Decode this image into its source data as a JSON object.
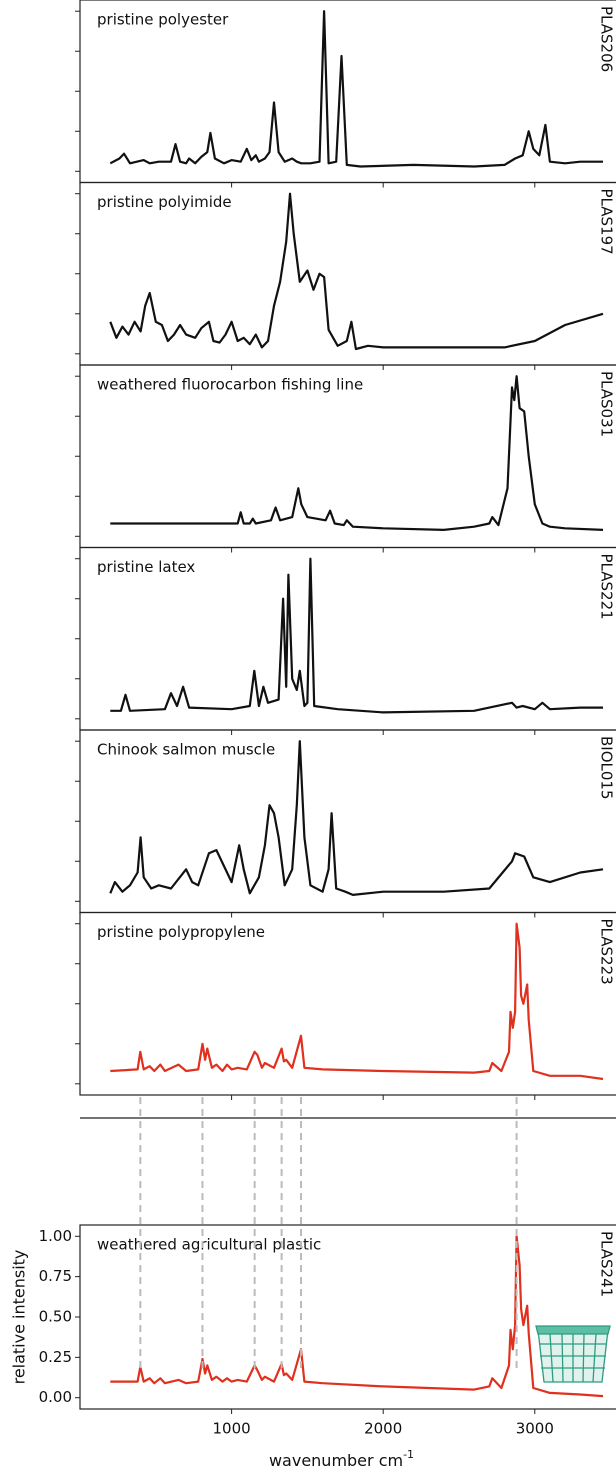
{
  "chart_data": [
    {
      "type": "line",
      "title": "pristine polyester",
      "side_label": "PLAS206",
      "color": "#111111",
      "x": [
        200,
        260,
        290,
        330,
        420,
        460,
        520,
        600,
        630,
        660,
        700,
        720,
        760,
        800,
        840,
        860,
        890,
        950,
        1000,
        1060,
        1100,
        1130,
        1160,
        1180,
        1220,
        1250,
        1280,
        1310,
        1350,
        1400,
        1430,
        1460,
        1520,
        1580,
        1610,
        1640,
        1690,
        1725,
        1760,
        1850,
        2200,
        2600,
        2800,
        2870,
        2920,
        2960,
        2990,
        3030,
        3070,
        3100,
        3200,
        3300,
        3450
      ],
      "values": [
        0.05,
        0.08,
        0.11,
        0.05,
        0.07,
        0.05,
        0.06,
        0.06,
        0.17,
        0.06,
        0.05,
        0.08,
        0.05,
        0.09,
        0.12,
        0.24,
        0.08,
        0.05,
        0.07,
        0.06,
        0.14,
        0.07,
        0.1,
        0.06,
        0.08,
        0.12,
        0.43,
        0.12,
        0.06,
        0.08,
        0.06,
        0.05,
        0.05,
        0.06,
        1.0,
        0.05,
        0.06,
        0.72,
        0.04,
        0.03,
        0.04,
        0.03,
        0.04,
        0.08,
        0.1,
        0.25,
        0.14,
        0.1,
        0.29,
        0.06,
        0.05,
        0.06,
        0.06
      ],
      "xlim": [
        0,
        3450
      ],
      "ylim": [
        -0.07,
        1.07
      ],
      "xticks": [
        1000,
        2000,
        3000
      ],
      "yticks": [
        0,
        0.25,
        0.5,
        0.75,
        1
      ]
    },
    {
      "type": "line",
      "title": "pristine polyimide",
      "side_label": "PLAS197",
      "color": "#111111",
      "x": [
        200,
        240,
        280,
        320,
        360,
        400,
        430,
        460,
        500,
        540,
        580,
        620,
        660,
        700,
        760,
        800,
        850,
        880,
        920,
        960,
        1000,
        1040,
        1080,
        1120,
        1160,
        1200,
        1240,
        1280,
        1320,
        1360,
        1385,
        1410,
        1450,
        1500,
        1540,
        1580,
        1610,
        1640,
        1700,
        1760,
        1790,
        1820,
        1900,
        2000,
        2200,
        2500,
        2800,
        3000,
        3200,
        3450
      ],
      "values": [
        0.2,
        0.1,
        0.17,
        0.12,
        0.2,
        0.14,
        0.3,
        0.38,
        0.2,
        0.18,
        0.08,
        0.12,
        0.18,
        0.12,
        0.1,
        0.16,
        0.2,
        0.08,
        0.07,
        0.12,
        0.2,
        0.08,
        0.1,
        0.06,
        0.12,
        0.04,
        0.08,
        0.3,
        0.45,
        0.7,
        1.0,
        0.75,
        0.45,
        0.52,
        0.4,
        0.5,
        0.48,
        0.15,
        0.05,
        0.08,
        0.2,
        0.03,
        0.05,
        0.04,
        0.04,
        0.04,
        0.04,
        0.08,
        0.18,
        0.25
      ],
      "xlim": [
        0,
        3450
      ],
      "ylim": [
        -0.07,
        1.07
      ],
      "xticks": [
        1000,
        2000,
        3000
      ],
      "yticks": [
        0,
        0.25,
        0.5,
        0.75,
        1
      ]
    },
    {
      "type": "line",
      "title": "weathered fluorocarbon fishing line",
      "side_label": "PLAS031",
      "color": "#111111",
      "x": [
        200,
        500,
        800,
        1000,
        1040,
        1060,
        1080,
        1120,
        1140,
        1160,
        1260,
        1290,
        1320,
        1400,
        1440,
        1460,
        1500,
        1620,
        1650,
        1680,
        1740,
        1760,
        1800,
        2000,
        2400,
        2600,
        2700,
        2720,
        2760,
        2820,
        2850,
        2865,
        2880,
        2900,
        2930,
        2960,
        3000,
        3050,
        3100,
        3200,
        3450
      ],
      "values": [
        0.08,
        0.08,
        0.08,
        0.08,
        0.08,
        0.15,
        0.08,
        0.08,
        0.11,
        0.08,
        0.1,
        0.18,
        0.1,
        0.12,
        0.3,
        0.2,
        0.12,
        0.1,
        0.16,
        0.08,
        0.07,
        0.1,
        0.06,
        0.05,
        0.04,
        0.06,
        0.08,
        0.12,
        0.07,
        0.3,
        0.93,
        0.85,
        1.0,
        0.8,
        0.78,
        0.5,
        0.2,
        0.08,
        0.06,
        0.05,
        0.04
      ],
      "xlim": [
        0,
        3450
      ],
      "ylim": [
        -0.07,
        1.07
      ],
      "xticks": [
        1000,
        2000,
        3000
      ],
      "yticks": [
        0,
        0.25,
        0.5,
        0.75,
        1
      ]
    },
    {
      "type": "line",
      "title": "pristine latex",
      "side_label": "PLAS221",
      "color": "#111111",
      "x": [
        200,
        270,
        300,
        330,
        560,
        600,
        640,
        680,
        720,
        1000,
        1120,
        1150,
        1180,
        1210,
        1240,
        1310,
        1340,
        1360,
        1375,
        1400,
        1430,
        1450,
        1480,
        1500,
        1520,
        1545,
        1700,
        2000,
        2600,
        2850,
        2880,
        2920,
        3000,
        3050,
        3100,
        3300,
        3450
      ],
      "values": [
        0.05,
        0.05,
        0.15,
        0.05,
        0.06,
        0.16,
        0.08,
        0.2,
        0.07,
        0.06,
        0.08,
        0.3,
        0.08,
        0.2,
        0.1,
        0.12,
        0.75,
        0.2,
        0.9,
        0.25,
        0.18,
        0.3,
        0.08,
        0.1,
        1.0,
        0.08,
        0.06,
        0.04,
        0.05,
        0.1,
        0.07,
        0.08,
        0.06,
        0.1,
        0.06,
        0.07,
        0.07
      ],
      "xlim": [
        0,
        3450
      ],
      "ylim": [
        -0.07,
        1.07
      ],
      "xticks": [
        1000,
        2000,
        3000
      ],
      "yticks": [
        0,
        0.25,
        0.5,
        0.75,
        1
      ]
    },
    {
      "type": "line",
      "title": "Chinook salmon muscle",
      "side_label": "BIOL015",
      "color": "#111111",
      "x": [
        200,
        230,
        280,
        330,
        380,
        400,
        420,
        470,
        520,
        600,
        700,
        740,
        780,
        850,
        900,
        950,
        1000,
        1050,
        1080,
        1120,
        1180,
        1220,
        1250,
        1280,
        1310,
        1350,
        1400,
        1430,
        1450,
        1480,
        1520,
        1600,
        1640,
        1660,
        1690,
        1750,
        1800,
        2000,
        2400,
        2700,
        2850,
        2870,
        2930,
        2990,
        3100,
        3300,
        3450
      ],
      "values": [
        0.05,
        0.12,
        0.06,
        0.1,
        0.18,
        0.4,
        0.15,
        0.08,
        0.1,
        0.08,
        0.2,
        0.12,
        0.1,
        0.3,
        0.32,
        0.22,
        0.12,
        0.35,
        0.2,
        0.05,
        0.15,
        0.35,
        0.6,
        0.55,
        0.4,
        0.1,
        0.2,
        0.6,
        1.0,
        0.4,
        0.1,
        0.06,
        0.2,
        0.55,
        0.08,
        0.06,
        0.04,
        0.06,
        0.06,
        0.08,
        0.25,
        0.3,
        0.28,
        0.15,
        0.12,
        0.18,
        0.2
      ],
      "xlim": [
        0,
        3450
      ],
      "ylim": [
        -0.07,
        1.07
      ],
      "xticks": [
        1000,
        2000,
        3000
      ],
      "yticks": [
        0,
        0.25,
        0.5,
        0.75,
        1
      ]
    },
    {
      "type": "line",
      "title": "pristine polypropylene",
      "side_label": "PLAS223",
      "color": "#e0301e",
      "x": [
        200,
        380,
        398,
        420,
        460,
        490,
        530,
        560,
        650,
        700,
        780,
        808,
        825,
        840,
        870,
        900,
        940,
        970,
        1000,
        1040,
        1100,
        1152,
        1170,
        1200,
        1220,
        1280,
        1330,
        1345,
        1360,
        1400,
        1458,
        1480,
        1600,
        2000,
        2600,
        2700,
        2720,
        2780,
        2830,
        2840,
        2855,
        2870,
        2880,
        2900,
        2910,
        2925,
        2950,
        2960,
        2990,
        3100,
        3300,
        3450
      ],
      "values": [
        0.08,
        0.09,
        0.2,
        0.09,
        0.11,
        0.08,
        0.12,
        0.08,
        0.12,
        0.08,
        0.09,
        0.25,
        0.15,
        0.22,
        0.1,
        0.12,
        0.08,
        0.12,
        0.09,
        0.1,
        0.09,
        0.2,
        0.18,
        0.1,
        0.13,
        0.1,
        0.22,
        0.14,
        0.15,
        0.1,
        0.3,
        0.1,
        0.09,
        0.08,
        0.07,
        0.08,
        0.13,
        0.08,
        0.2,
        0.45,
        0.35,
        0.45,
        1.0,
        0.85,
        0.55,
        0.5,
        0.62,
        0.4,
        0.08,
        0.05,
        0.05,
        0.03
      ],
      "xlim": [
        0,
        3450
      ],
      "ylim": [
        -0.07,
        1.07
      ],
      "xticks": [
        1000,
        2000,
        3000
      ],
      "yticks": [
        0,
        0.25,
        0.5,
        0.75,
        1
      ]
    },
    {
      "type": "line",
      "title": "weathered agricultural plastic",
      "side_label": "PLAS241",
      "color": "#e0301e",
      "x": [
        200,
        380,
        398,
        420,
        460,
        490,
        530,
        560,
        650,
        700,
        780,
        808,
        825,
        840,
        870,
        900,
        940,
        970,
        1000,
        1040,
        1100,
        1152,
        1170,
        1200,
        1220,
        1280,
        1330,
        1345,
        1360,
        1400,
        1458,
        1480,
        1600,
        2000,
        2600,
        2700,
        2720,
        2780,
        2830,
        2840,
        2855,
        2870,
        2880,
        2900,
        2910,
        2925,
        2950,
        2960,
        2990,
        3100,
        3300,
        3450
      ],
      "values": [
        0.1,
        0.1,
        0.19,
        0.1,
        0.12,
        0.09,
        0.12,
        0.09,
        0.11,
        0.09,
        0.1,
        0.24,
        0.15,
        0.2,
        0.11,
        0.13,
        0.1,
        0.12,
        0.1,
        0.11,
        0.1,
        0.2,
        0.17,
        0.11,
        0.13,
        0.1,
        0.21,
        0.14,
        0.15,
        0.11,
        0.3,
        0.1,
        0.09,
        0.07,
        0.05,
        0.07,
        0.12,
        0.06,
        0.2,
        0.42,
        0.3,
        0.45,
        1.0,
        0.82,
        0.55,
        0.45,
        0.57,
        0.4,
        0.06,
        0.03,
        0.02,
        0.01
      ],
      "xlim": [
        0,
        3450
      ],
      "ylim": [
        -0.07,
        1.07
      ],
      "xticks": [
        1000,
        2000,
        3000
      ],
      "yticks": [
        {
          "value": 0,
          "label": "0.00"
        },
        {
          "value": 0.25,
          "label": "0.25"
        },
        {
          "value": 0.5,
          "label": "0.50"
        },
        {
          "value": 0.75,
          "label": "0.75"
        },
        {
          "value": 1,
          "label": "1.00"
        }
      ],
      "ylabel": "relative intensity",
      "xlabel": "wavenumber cm",
      "xlabel_superscript": "-1",
      "peak_lines": [
        398,
        808,
        1152,
        1330,
        1458,
        2880
      ],
      "peak_line_color": "#bbbbbb"
    }
  ]
}
